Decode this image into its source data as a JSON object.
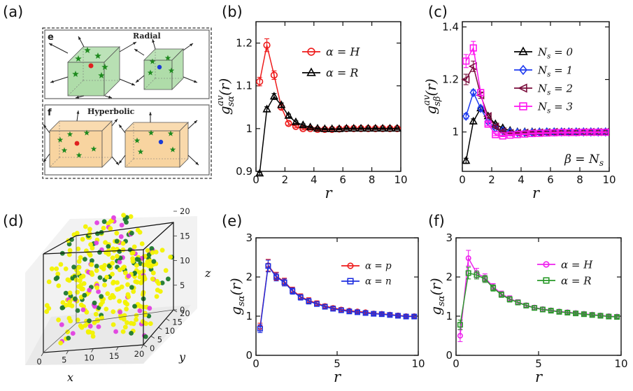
{
  "panel_labels": {
    "a": "(a)",
    "b": "(b)",
    "c": "(c)",
    "d": "(d)",
    "e": "(e)",
    "f": "(f)"
  },
  "schematic": {
    "top_letter": "e",
    "top_title": "Radial",
    "bottom_letter": "f",
    "bottom_title": "Hyperbolic",
    "colors": {
      "radial_box": "#a6d8a0",
      "hyperbolic_box": "#f7cf96",
      "star": "#1f8a1f",
      "red_dot": "#e02020",
      "blue_dot": "#1a3bd6"
    }
  },
  "scatter3d": {
    "x_label": "x",
    "y_label": "y",
    "z_label": "z",
    "x_ticks": [
      "0",
      "5",
      "10",
      "15",
      "20"
    ],
    "y_ticks": [
      "0",
      "5",
      "10",
      "15",
      "20"
    ],
    "z_ticks": [
      "0",
      "5",
      "10",
      "15",
      "20"
    ],
    "colors": {
      "yellow": "#f2f200",
      "green": "#1e7a2e",
      "magenta": "#e040e0"
    }
  },
  "chart_data": [
    {
      "id": "b",
      "type": "line",
      "xlabel": "r",
      "ylabel": "g",
      "ylabel_sup": "av",
      "ylabel_sub": "sα",
      "ylabel_tail": "(r)",
      "xlim": [
        0,
        10
      ],
      "ylim": [
        0.9,
        1.25
      ],
      "x_ticks": [
        0,
        2,
        4,
        6,
        8,
        10
      ],
      "y_ticks": [
        0.9,
        1,
        1.1,
        1.2
      ],
      "y_tick_labels": [
        "0.9",
        "1",
        "1.1",
        "1.2"
      ],
      "legend_position": "top-right",
      "series": [
        {
          "name": "α = H",
          "color": "#ee1c1c",
          "marker": "circle",
          "x": [
            0.25,
            0.75,
            1.25,
            1.75,
            2.25,
            2.75,
            3.25,
            3.75,
            4.25,
            4.75,
            5.25,
            5.75,
            6.25,
            6.75,
            7.25,
            7.75,
            8.25,
            8.75,
            9.25,
            9.75
          ],
          "y": [
            1.11,
            1.195,
            1.125,
            1.05,
            1.012,
            1.005,
            1.0,
            1.0,
            0.998,
            0.998,
            0.998,
            0.999,
            1.0,
            1.0,
            1.0,
            1.0,
            1.0,
            1.0,
            1.0,
            1.0
          ],
          "err": [
            0.01,
            0.015,
            0.01,
            0.005,
            0.004,
            0.003,
            0.003,
            0.003,
            0.002,
            0.002,
            0.002,
            0.002,
            0.002,
            0.002,
            0.002,
            0.002,
            0.002,
            0.002,
            0.002,
            0.002
          ]
        },
        {
          "name": "α = R",
          "color": "#000000",
          "marker": "triangle",
          "x": [
            0.25,
            0.75,
            1.25,
            1.75,
            2.25,
            2.75,
            3.25,
            3.75,
            4.25,
            4.75,
            5.25,
            5.75,
            6.25,
            6.75,
            7.25,
            7.75,
            8.25,
            8.75,
            9.25,
            9.75
          ],
          "y": [
            0.895,
            1.045,
            1.075,
            1.055,
            1.03,
            1.015,
            1.008,
            1.003,
            1.0,
            0.999,
            0.999,
            0.999,
            1.0,
            1.0,
            1.0,
            1.0,
            1.0,
            1.0,
            1.0,
            1.0
          ],
          "err": [
            0.003,
            0.006,
            0.007,
            0.005,
            0.004,
            0.003,
            0.003,
            0.002,
            0.002,
            0.002,
            0.002,
            0.002,
            0.002,
            0.002,
            0.002,
            0.002,
            0.002,
            0.002,
            0.002,
            0.002
          ]
        }
      ]
    },
    {
      "id": "c",
      "type": "line",
      "xlabel": "r",
      "ylabel": "g",
      "ylabel_sup": "av",
      "ylabel_sub": "sβ",
      "ylabel_tail": "(r)",
      "annotation": "β = N",
      "annotation_sub": "s",
      "xlim": [
        0,
        10
      ],
      "ylim": [
        0.85,
        1.42
      ],
      "x_ticks": [
        0,
        2,
        4,
        6,
        8,
        10
      ],
      "y_ticks": [
        1,
        1.2,
        1.4
      ],
      "y_tick_labels": [
        "1",
        "1.2",
        "1.4"
      ],
      "legend_position": "top-right",
      "series": [
        {
          "name": "N",
          "name_sub": "s",
          "name_tail": " = 0",
          "color": "#000000",
          "marker": "triangle",
          "x": [
            0.25,
            0.75,
            1.25,
            1.75,
            2.25,
            2.75,
            3.25,
            3.75,
            4.25,
            4.75,
            5.25,
            5.75,
            6.25,
            6.75,
            7.25,
            7.75,
            8.25,
            8.75,
            9.25,
            9.75
          ],
          "y": [
            0.89,
            1.04,
            1.09,
            1.06,
            1.03,
            1.015,
            1.005,
            1.0,
            1.0,
            1.0,
            1.0,
            1.0,
            1.0,
            1.0,
            1.0,
            1.0,
            1.0,
            1.0,
            1.0,
            1.0
          ],
          "err": [
            0.01,
            0.01,
            0.008,
            0.006,
            0.004,
            0.003,
            0.003,
            0.002,
            0.002,
            0.002,
            0.002,
            0.002,
            0.002,
            0.002,
            0.002,
            0.002,
            0.002,
            0.002,
            0.002,
            0.002
          ]
        },
        {
          "name": "N",
          "name_sub": "s",
          "name_tail": " = 1",
          "color": "#1f3cf0",
          "marker": "diamond",
          "x": [
            0.25,
            0.75,
            1.25,
            1.75,
            2.25,
            2.75,
            3.25,
            3.75,
            4.25,
            4.75,
            5.25,
            5.75,
            6.25,
            6.75,
            7.25,
            7.75,
            8.25,
            8.75,
            9.25,
            9.75
          ],
          "y": [
            1.06,
            1.15,
            1.09,
            1.04,
            1.015,
            1.005,
            1.0,
            0.998,
            0.998,
            0.998,
            0.999,
            1.0,
            1.0,
            1.0,
            1.0,
            1.0,
            1.0,
            1.0,
            1.0,
            1.0
          ],
          "err": [
            0.01,
            0.01,
            0.008,
            0.005,
            0.004,
            0.003,
            0.003,
            0.002,
            0.002,
            0.002,
            0.002,
            0.002,
            0.002,
            0.002,
            0.002,
            0.002,
            0.002,
            0.002,
            0.002,
            0.002
          ]
        },
        {
          "name": "N",
          "name_sub": "s",
          "name_tail": " = 2",
          "color": "#7a0d3c",
          "marker": "triangle-left",
          "x": [
            0.25,
            0.75,
            1.25,
            1.75,
            2.25,
            2.75,
            3.25,
            3.75,
            4.25,
            4.75,
            5.25,
            5.75,
            6.25,
            6.75,
            7.25,
            7.75,
            8.25,
            8.75,
            9.25,
            9.75
          ],
          "y": [
            1.2,
            1.25,
            1.14,
            1.06,
            1.02,
            1.002,
            0.996,
            0.996,
            0.997,
            0.998,
            0.998,
            0.999,
            1.0,
            1.0,
            1.0,
            1.0,
            1.0,
            1.0,
            1.0,
            1.0
          ],
          "err": [
            0.02,
            0.02,
            0.012,
            0.006,
            0.004,
            0.003,
            0.003,
            0.002,
            0.002,
            0.002,
            0.002,
            0.002,
            0.002,
            0.002,
            0.002,
            0.002,
            0.002,
            0.002,
            0.002,
            0.002
          ]
        },
        {
          "name": "N",
          "name_sub": "s",
          "name_tail": " = 3",
          "color": "#ff14f0",
          "marker": "square",
          "x": [
            0.25,
            0.75,
            1.25,
            1.75,
            2.25,
            2.75,
            3.25,
            3.75,
            4.25,
            4.75,
            5.25,
            5.75,
            6.25,
            6.75,
            7.25,
            7.75,
            8.25,
            8.75,
            9.25,
            9.75
          ],
          "y": [
            1.27,
            1.32,
            1.15,
            1.03,
            0.99,
            0.985,
            0.988,
            0.99,
            0.992,
            0.994,
            0.995,
            0.996,
            0.997,
            0.998,
            0.998,
            0.998,
            0.999,
            0.999,
            0.999,
            0.999
          ],
          "err": [
            0.025,
            0.025,
            0.012,
            0.006,
            0.004,
            0.003,
            0.003,
            0.002,
            0.002,
            0.002,
            0.002,
            0.002,
            0.002,
            0.002,
            0.002,
            0.002,
            0.002,
            0.002,
            0.002,
            0.002
          ]
        }
      ]
    },
    {
      "id": "e",
      "type": "line",
      "xlabel": "r",
      "ylabel": "g",
      "ylabel_sub": "sα",
      "ylabel_tail": "(r)",
      "xlim": [
        0,
        10
      ],
      "ylim": [
        0,
        3
      ],
      "x_ticks": [
        0,
        5,
        10
      ],
      "y_ticks": [
        0,
        1,
        2,
        3
      ],
      "y_tick_labels": [
        "0",
        "1",
        "2",
        "3"
      ],
      "legend_position": "top-right",
      "series": [
        {
          "name": "α = p",
          "color": "#ee1c1c",
          "marker": "circle",
          "x": [
            0.25,
            0.75,
            1.25,
            1.75,
            2.25,
            2.75,
            3.25,
            3.75,
            4.25,
            4.75,
            5.25,
            5.75,
            6.25,
            6.75,
            7.25,
            7.75,
            8.25,
            8.75,
            9.25,
            9.75
          ],
          "y": [
            0.72,
            2.3,
            2.02,
            1.88,
            1.66,
            1.5,
            1.4,
            1.33,
            1.26,
            1.21,
            1.17,
            1.14,
            1.12,
            1.1,
            1.07,
            1.06,
            1.04,
            1.02,
            1.0,
            1.0
          ],
          "err": [
            0.1,
            0.15,
            0.1,
            0.09,
            0.08,
            0.07,
            0.07,
            0.06,
            0.05,
            0.05,
            0.05,
            0.04,
            0.04,
            0.04,
            0.03,
            0.03,
            0.03,
            0.03,
            0.03,
            0.03
          ]
        },
        {
          "name": "α = n",
          "color": "#2030e0",
          "marker": "square",
          "x": [
            0.25,
            0.75,
            1.25,
            1.75,
            2.25,
            2.75,
            3.25,
            3.75,
            4.25,
            4.75,
            5.25,
            5.75,
            6.25,
            6.75,
            7.25,
            7.75,
            8.25,
            8.75,
            9.25,
            9.75
          ],
          "y": [
            0.68,
            2.28,
            2.0,
            1.86,
            1.64,
            1.48,
            1.38,
            1.31,
            1.24,
            1.19,
            1.15,
            1.12,
            1.1,
            1.08,
            1.06,
            1.05,
            1.03,
            1.01,
            0.99,
            0.99
          ],
          "err": [
            0.1,
            0.15,
            0.1,
            0.09,
            0.08,
            0.07,
            0.07,
            0.06,
            0.05,
            0.05,
            0.05,
            0.04,
            0.04,
            0.04,
            0.03,
            0.03,
            0.03,
            0.03,
            0.03,
            0.03
          ]
        }
      ]
    },
    {
      "id": "f",
      "type": "line",
      "xlabel": "r",
      "ylabel": "g",
      "ylabel_sub": "sα",
      "ylabel_tail": "(r)",
      "xlim": [
        0,
        10
      ],
      "ylim": [
        0,
        3
      ],
      "x_ticks": [
        0,
        5,
        10
      ],
      "y_ticks": [
        0,
        1,
        2,
        3
      ],
      "y_tick_labels": [
        "0",
        "1",
        "2",
        "3"
      ],
      "legend_position": "top-right",
      "series": [
        {
          "name": "α = H",
          "color": "#ee22ee",
          "marker": "circle",
          "x": [
            0.25,
            0.75,
            1.25,
            1.75,
            2.25,
            2.75,
            3.25,
            3.75,
            4.25,
            4.75,
            5.25,
            5.75,
            6.25,
            6.75,
            7.25,
            7.75,
            8.25,
            8.75,
            9.25,
            9.75
          ],
          "y": [
            0.5,
            2.48,
            2.1,
            1.98,
            1.75,
            1.57,
            1.45,
            1.36,
            1.28,
            1.22,
            1.18,
            1.15,
            1.12,
            1.1,
            1.08,
            1.06,
            1.04,
            1.02,
            1.0,
            0.99
          ],
          "err": [
            0.15,
            0.2,
            0.12,
            0.1,
            0.08,
            0.07,
            0.07,
            0.06,
            0.05,
            0.05,
            0.05,
            0.04,
            0.04,
            0.04,
            0.03,
            0.03,
            0.03,
            0.03,
            0.03,
            0.03
          ]
        },
        {
          "name": "α = R",
          "color": "#2a9a2a",
          "marker": "square",
          "x": [
            0.25,
            0.75,
            1.25,
            1.75,
            2.25,
            2.75,
            3.25,
            3.75,
            4.25,
            4.75,
            5.25,
            5.75,
            6.25,
            6.75,
            7.25,
            7.75,
            8.25,
            8.75,
            9.25,
            9.75
          ],
          "y": [
            0.78,
            2.1,
            2.05,
            1.95,
            1.72,
            1.55,
            1.43,
            1.35,
            1.27,
            1.21,
            1.17,
            1.14,
            1.11,
            1.09,
            1.07,
            1.05,
            1.03,
            1.01,
            0.99,
            0.98
          ],
          "err": [
            0.12,
            0.15,
            0.1,
            0.09,
            0.08,
            0.07,
            0.07,
            0.06,
            0.05,
            0.05,
            0.05,
            0.04,
            0.04,
            0.04,
            0.03,
            0.03,
            0.03,
            0.03,
            0.03,
            0.03
          ]
        }
      ]
    }
  ]
}
